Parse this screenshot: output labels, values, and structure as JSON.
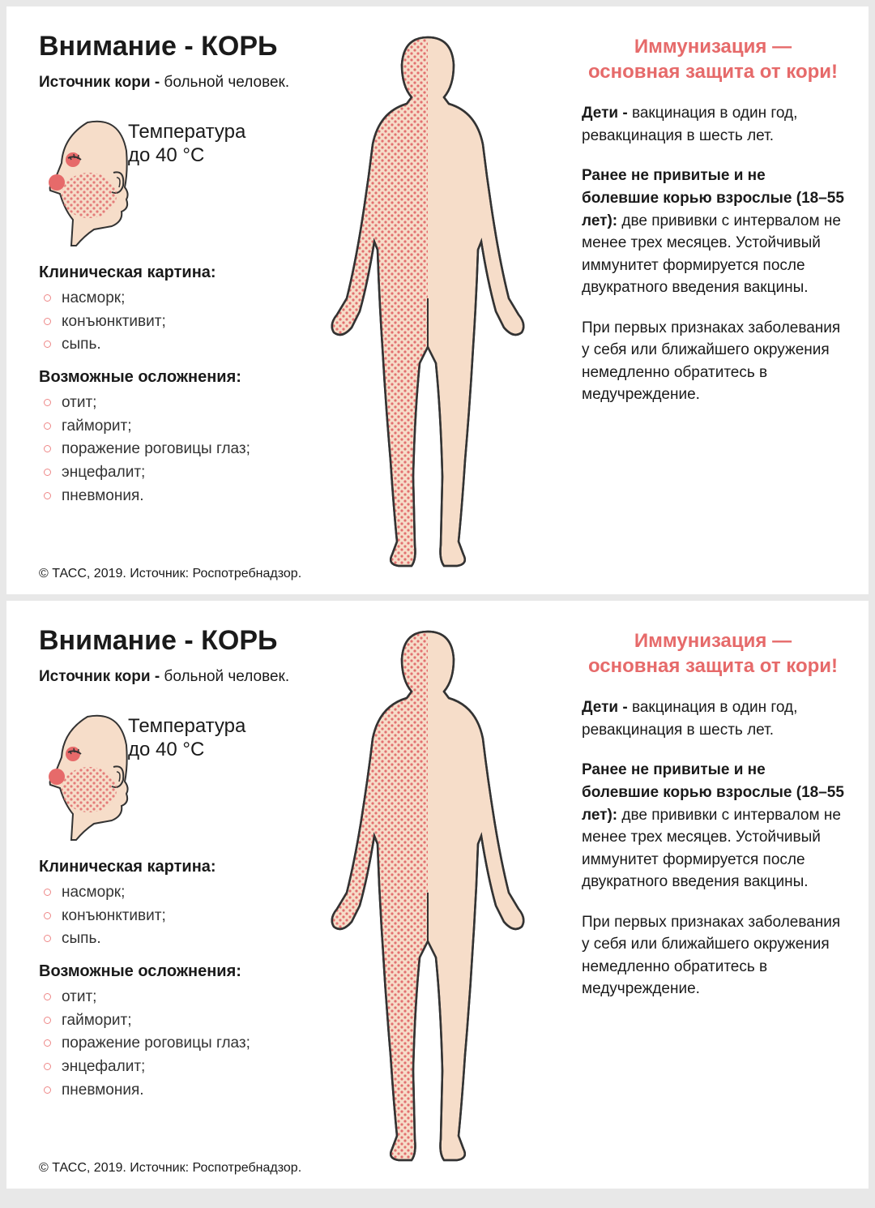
{
  "colors": {
    "page_bg": "#e8e8e8",
    "card_bg": "#ffffff",
    "text": "#1a1a1a",
    "accent": "#e66a6a",
    "skin": "#f6ddc9",
    "rash": "#e98a8a",
    "outline": "#333333",
    "bullet_ring": "#e88888"
  },
  "panel": {
    "title": "Внимание - КОРЬ",
    "source_bold": "Источник кори -",
    "source_rest": " больной человек.",
    "temp_l1": "Температура",
    "temp_l2": "до 40 °С",
    "clinical_h": "Клиническая картина:",
    "clinical_items": [
      "насморк;",
      "конъюнктивит;",
      "сыпь."
    ],
    "complications_h": "Возможные осложнения:",
    "complications_items": [
      "отит;",
      "гайморит;",
      "поражение роговицы глаз;",
      "энцефалит;",
      "пневмония."
    ],
    "copyright": "© ТАСС, 2019. Источник: Роспотребнадзор.",
    "imm_l1": "Иммунизация —",
    "imm_l2": "основная защита от кори!",
    "p1_bold": "Дети -",
    "p1_rest": " вакцинация в один год, ревакцина­ция в шесть лет.",
    "p2_bold": "Ранее не привитые и не болевшие корью взрослые (18–55 лет):",
    "p2_rest": " две прививки с интер­валом не менее трех месяцев. Устойчивый иммунитет формирует­ся после двукратного введения вакцины.",
    "p3": "При первых призна­ках заболевания у себя или ближай­шего окружения не­медленно обратитесь в медучреждение."
  }
}
